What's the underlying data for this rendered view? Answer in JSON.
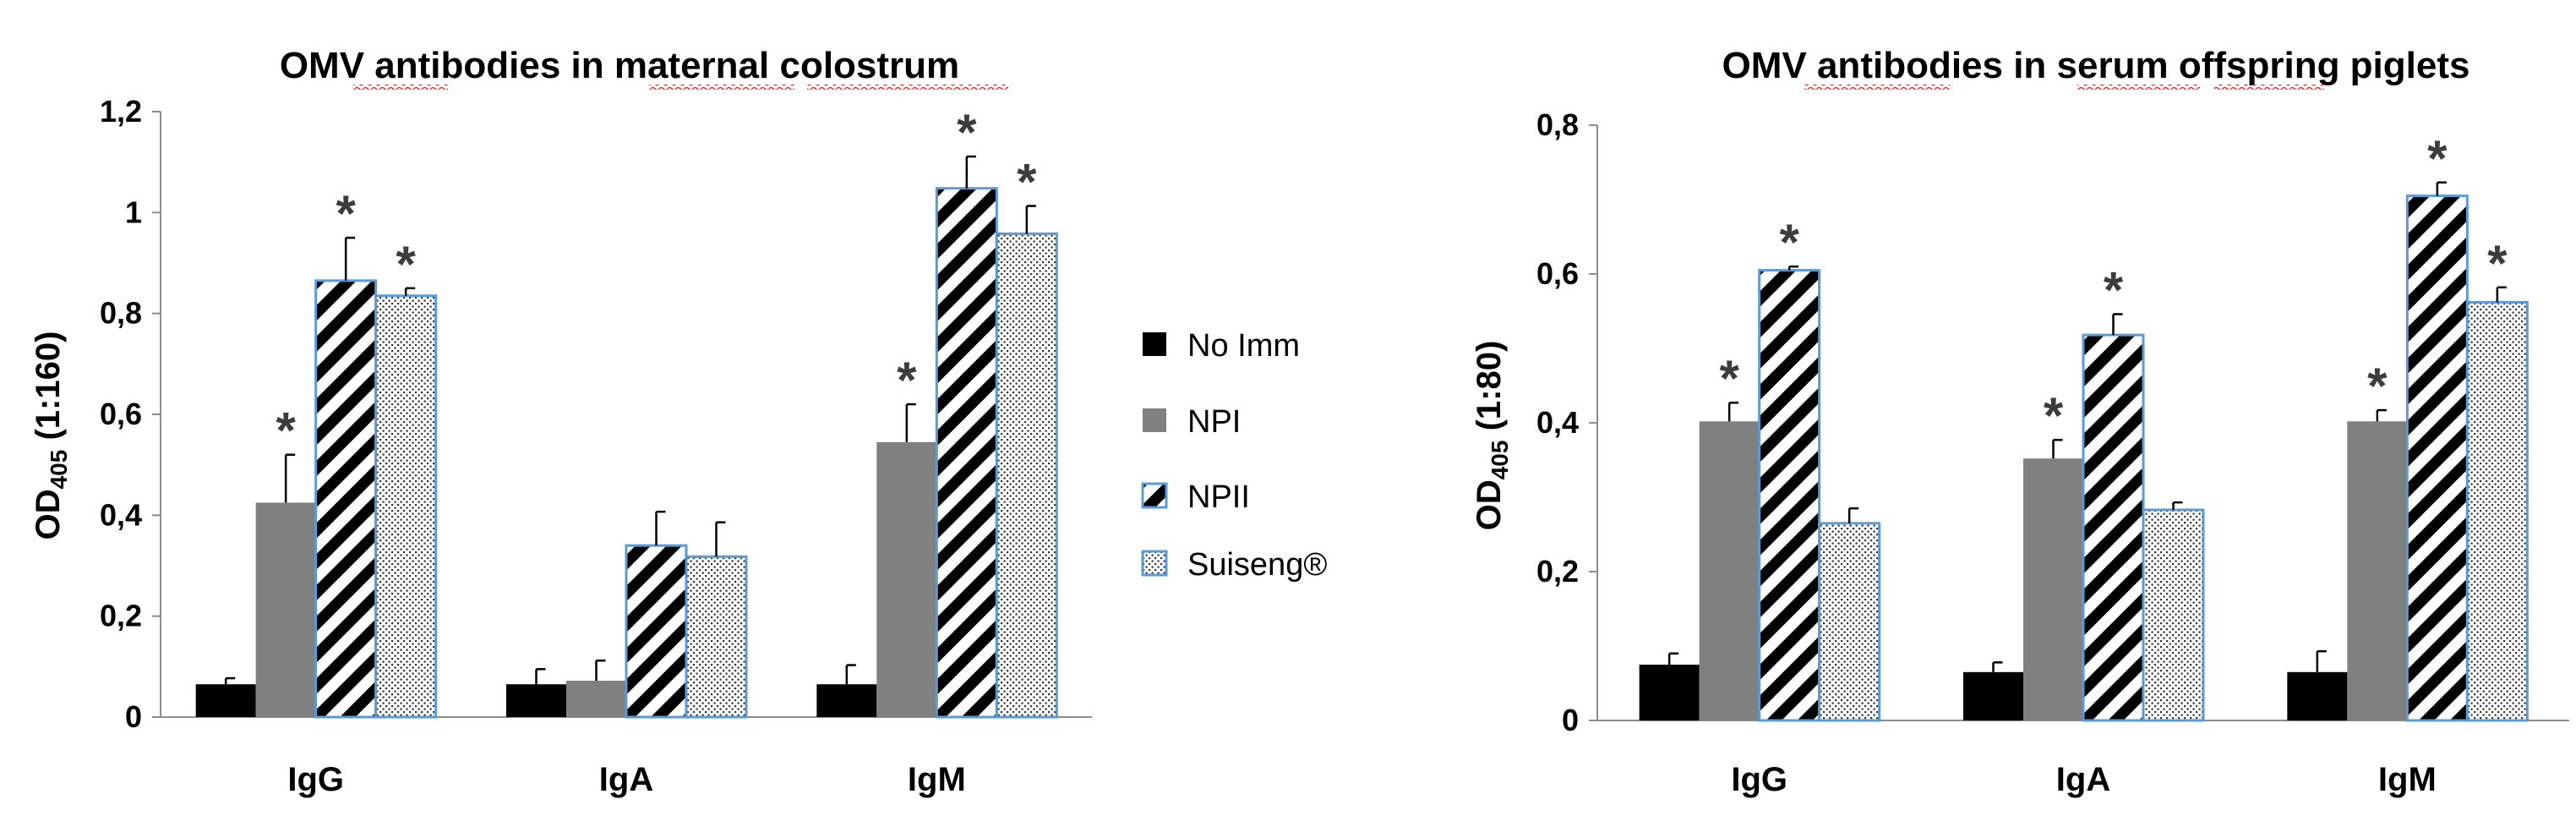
{
  "chart_data": [
    {
      "type": "bar",
      "title": "OMV antibodies in maternal colostrum",
      "ylabel": "OD405 (1:160)",
      "ylabel_main": "OD",
      "ylabel_sub": "405",
      "ylabel_rest": " (1:160)",
      "xlabel": "",
      "ylim": [
        0,
        1.2
      ],
      "yticks": [
        "0",
        "0,2",
        "0,4",
        "0,6",
        "0,8",
        "1",
        "1,2"
      ],
      "ytick_values": [
        0,
        0.2,
        0.4,
        0.6,
        0.8,
        1.0,
        1.2
      ],
      "categories": [
        "IgG",
        "IgA",
        "IgM"
      ],
      "series": [
        {
          "name": "No Imm",
          "values": [
            0.065,
            0.065,
            0.065
          ],
          "errors": [
            0.012,
            0.03,
            0.038
          ],
          "sig": [
            false,
            false,
            false
          ]
        },
        {
          "name": "NPI",
          "values": [
            0.425,
            0.072,
            0.545
          ],
          "errors": [
            0.095,
            0.04,
            0.075
          ],
          "sig": [
            true,
            false,
            true
          ]
        },
        {
          "name": "NPII",
          "values": [
            0.865,
            0.34,
            1.048
          ],
          "errors": [
            0.085,
            0.067,
            0.063
          ],
          "sig": [
            true,
            false,
            true
          ]
        },
        {
          "name": "Suiseng®",
          "values": [
            0.835,
            0.318,
            0.958
          ],
          "errors": [
            0.015,
            0.068,
            0.055
          ],
          "sig": [
            true,
            false,
            true
          ]
        }
      ],
      "significance_marker": "*"
    },
    {
      "type": "bar",
      "title": "OMV antibodies in serum offspring  piglets",
      "ylabel": "OD405 (1:80)",
      "ylabel_main": "OD",
      "ylabel_sub": "405",
      "ylabel_rest": " (1:80)",
      "xlabel": "",
      "ylim": [
        0,
        0.8
      ],
      "yticks": [
        "0",
        "0,2",
        "0,4",
        "0,6",
        "0,8"
      ],
      "ytick_values": [
        0,
        0.2,
        0.4,
        0.6,
        0.8
      ],
      "categories": [
        "IgG",
        "IgA",
        "IgM"
      ],
      "series": [
        {
          "name": "No Imm",
          "values": [
            0.075,
            0.065,
            0.065
          ],
          "errors": [
            0.015,
            0.013,
            0.028
          ],
          "sig": [
            false,
            false,
            false
          ]
        },
        {
          "name": "NPI",
          "values": [
            0.402,
            0.352,
            0.402
          ],
          "errors": [
            0.025,
            0.025,
            0.015
          ],
          "sig": [
            true,
            true,
            true
          ]
        },
        {
          "name": "NPII",
          "values": [
            0.605,
            0.518,
            0.705
          ],
          "errors": [
            0.005,
            0.028,
            0.018
          ],
          "sig": [
            true,
            true,
            true
          ]
        },
        {
          "name": "Suiseng®",
          "values": [
            0.265,
            0.283,
            0.562
          ],
          "errors": [
            0.02,
            0.01,
            0.02
          ],
          "sig": [
            false,
            false,
            true
          ]
        }
      ],
      "significance_marker": "*"
    }
  ],
  "legend": {
    "items": [
      {
        "name": "No Imm",
        "fill": "solid-black"
      },
      {
        "name": "NPI",
        "fill": "solid-gray"
      },
      {
        "name": "NPII",
        "fill": "diagonal-stripes"
      },
      {
        "name": "Suiseng®",
        "fill": "dots"
      }
    ]
  },
  "colors": {
    "no_imm": "#000000",
    "npi": "#808080",
    "npii_stripe": "#000000",
    "suiseng_dot": "#333333",
    "hatched_border": "#5b9bd5",
    "axis": "#8c8c8c",
    "spellcheck_underline": "#e03030"
  }
}
